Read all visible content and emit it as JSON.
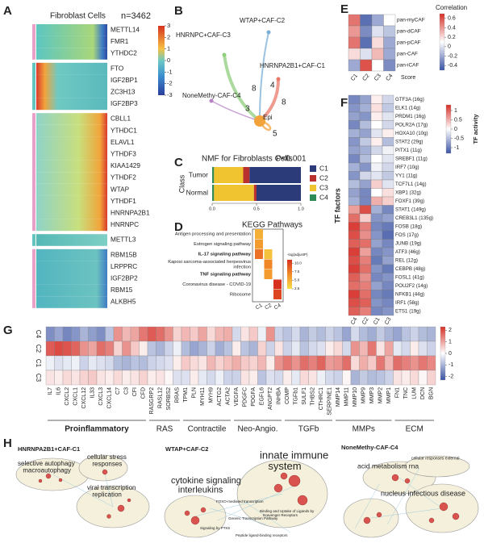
{
  "panel_labels": [
    "A",
    "B",
    "C",
    "D",
    "E",
    "F",
    "G",
    "H"
  ],
  "A": {
    "title": "Fibroblast Cells",
    "n_label": "n=3462",
    "gene_groups": [
      [
        "METTL14",
        "FMR1",
        "YTHDC2"
      ],
      [
        "FTO",
        "IGF2BP1",
        "ZC3H13",
        "IGF2BP3"
      ],
      [
        "CBLL1",
        "YTHDC1",
        "ELAVL1",
        "YTHDF3",
        "KIAA1429",
        "YTHDF2",
        "WTAP",
        "YTHDF1",
        "HNRNPA2B1",
        "HNRNPC"
      ],
      [
        "METTL3"
      ],
      [
        "RBM15B",
        "LRPPRC",
        "IGF2BP2",
        "RBM15",
        "ALKBH5"
      ]
    ],
    "colorbar_ticks": [
      3,
      2,
      1,
      0,
      -1,
      -2,
      -3
    ]
  },
  "B": {
    "nodes": [
      {
        "label": "HNRNPC+CAF-C3",
        "color": "#8fce7d"
      },
      {
        "label": "WTAP+CAF-C2",
        "color": "#7aaed6"
      },
      {
        "label": "HNRNPA2B1+CAF-C1",
        "color": "#e9796b"
      },
      {
        "label": "NoneMethy-CAF-C4",
        "color": "#b784c8"
      },
      {
        "label": "Epi",
        "color": "#f2a33a"
      }
    ],
    "edges": [
      {
        "source": "HNRNPC+CAF-C3",
        "target": "Epi",
        "weight": 8
      },
      {
        "source": "WTAP+CAF-C2",
        "target": "Epi",
        "weight": 4
      },
      {
        "source": "HNRNPA2B1+CAF-C1",
        "target": "Epi",
        "weight": 8
      },
      {
        "source": "NoneMethy-CAF-C4",
        "target": "Epi",
        "weight": 3
      },
      {
        "source": "Epi",
        "target": "Epi",
        "weight": 5
      }
    ]
  },
  "C": {
    "type": "bar",
    "title": "NMF for Fibroblasts Cells",
    "annotation": "P<0.001",
    "ylabel": "Class",
    "categories": [
      "Tumor",
      "Normal"
    ],
    "series": [
      {
        "name": "C1",
        "color": "#2b3a78",
        "values": [
          0.58,
          0.5
        ]
      },
      {
        "name": "C2",
        "color": "#b8312f",
        "values": [
          0.07,
          0.03
        ]
      },
      {
        "name": "C3",
        "color": "#f0c330",
        "values": [
          0.33,
          0.45
        ]
      },
      {
        "name": "C4",
        "color": "#2e8b57",
        "values": [
          0.02,
          0.02
        ]
      }
    ],
    "xlim": [
      0,
      1
    ],
    "xticks": [
      {
        "value": 0,
        "label": "0.0"
      },
      {
        "value": 0.5,
        "label": "0.5"
      },
      {
        "value": 1,
        "label": "1.0"
      }
    ]
  },
  "D": {
    "title": "KEGG Pathways",
    "legend_title": "-log(adjustP)",
    "pathways": [
      {
        "lines": [
          "Antigen processing and presentation"
        ],
        "bold": false
      },
      {
        "lines": [
          "Estrogen signaling pathway"
        ],
        "bold": false
      },
      {
        "lines": [
          "IL-17 signaling pathway"
        ],
        "bold": true
      },
      {
        "lines": [
          "Kaposi sarcoma-associated herpesvirus",
          "infection"
        ],
        "bold": false
      },
      {
        "lines": [
          "TNF signaling pathway"
        ],
        "bold": true
      },
      {
        "lines": [
          "Coronavirus disease - COVID-19"
        ],
        "bold": false
      },
      {
        "lines": [
          "Ribosome"
        ],
        "bold": false
      }
    ],
    "columns": [
      "C1",
      "C2",
      "C4"
    ],
    "values": [
      [
        5,
        null,
        null
      ],
      [
        6,
        null,
        null
      ],
      [
        8,
        4,
        null
      ],
      [
        null,
        7,
        null
      ],
      [
        null,
        6,
        null
      ],
      [
        null,
        null,
        11
      ],
      [
        null,
        null,
        10
      ]
    ],
    "lim": [
      2.5,
      11
    ],
    "ticks": [
      {
        "value": 10,
        "label": "10.0"
      },
      7.5,
      {
        "value": 5,
        "label": "5.0"
      },
      2.5
    ]
  },
  "E": {
    "title": "Correlation",
    "xlabel": "Score",
    "rows": [
      "pan-myCAF",
      "pan-dCAF",
      "pan-pCAF",
      "pan-CAF",
      "pan-iCAF"
    ],
    "columns": [
      "C1",
      "C2",
      "C3",
      "C4"
    ],
    "values": [
      [
        0.5,
        -0.4,
        -0.2,
        0.1
      ],
      [
        0.4,
        -0.3,
        0.0,
        -0.1
      ],
      [
        0.5,
        -0.4,
        0.2,
        -0.2
      ],
      [
        0.2,
        0.0,
        0.3,
        -0.2
      ],
      [
        -0.2,
        0.6,
        0.1,
        -0.3
      ]
    ],
    "lim": [
      -0.5,
      0.7
    ],
    "ticks": [
      0.6,
      0.4,
      0.2,
      0,
      -0.2,
      -0.4
    ]
  },
  "F": {
    "title": "TF activity",
    "ylabel": "TF factors",
    "rows": [
      "GTF3A (16g)",
      "ELK1 (14g)",
      "PRDM1 (16g)",
      "POLR2A (17g)",
      "HOXA10 (10g)",
      "STAT2 (29g)",
      "PITX1 (11g)",
      "SREBF1 (11g)",
      "IRF7 (10g)",
      "YY1 (11g)",
      "TCF7L1 (14g)",
      "XBP1 (32g)",
      "FOXF1 (39g)",
      "STAT1 (149g)",
      "CREB3L1 (135g)",
      "FOSB (18g)",
      "FOS (17g)",
      "JUNB (19g)",
      "ATF3 (46g)",
      "REL (12g)",
      "CEBPB (48g)",
      "FOSL1 (41g)",
      "POU2F2 (14g)",
      "NFKB1 (44g)",
      "IRF1 (58g)",
      "ETS1 (19g)"
    ],
    "columns": [
      "C4",
      "C2",
      "C1",
      "C3"
    ],
    "values": [
      [
        -0.9,
        -0.7,
        0.1,
        -0.3
      ],
      [
        -0.8,
        -0.6,
        0.2,
        -0.4
      ],
      [
        -0.7,
        -0.8,
        0.1,
        -0.2
      ],
      [
        -0.9,
        -0.5,
        0.0,
        -0.3
      ],
      [
        -0.6,
        -0.7,
        -0.2,
        0.1
      ],
      [
        -0.8,
        -0.4,
        0.1,
        -0.5
      ],
      [
        -0.7,
        -0.6,
        -0.3,
        -0.1
      ],
      [
        -0.9,
        -0.5,
        0.0,
        -0.2
      ],
      [
        -0.6,
        -0.8,
        -0.1,
        -0.3
      ],
      [
        -0.8,
        -0.3,
        -0.2,
        -0.4
      ],
      [
        -0.5,
        -0.7,
        0.3,
        -0.2
      ],
      [
        -0.7,
        -0.9,
        0.0,
        0.2
      ],
      [
        -0.6,
        -0.9,
        0.5,
        0.3
      ],
      [
        0.6,
        1.1,
        -0.6,
        -0.9
      ],
      [
        0.9,
        0.3,
        -0.8,
        -0.7
      ],
      [
        1.2,
        0.8,
        -0.9,
        -1.0
      ],
      [
        1.1,
        0.7,
        -0.8,
        -1.1
      ],
      [
        1.0,
        0.9,
        -0.7,
        -0.9
      ],
      [
        1.2,
        0.6,
        -0.9,
        -0.8
      ],
      [
        1.1,
        0.8,
        -1.0,
        -0.7
      ],
      [
        1.2,
        0.9,
        -0.8,
        -1.0
      ],
      [
        1.0,
        0.7,
        -0.9,
        -0.8
      ],
      [
        0.9,
        0.8,
        -0.7,
        -0.9
      ],
      [
        1.2,
        0.9,
        -0.9,
        -1.0
      ],
      [
        1.1,
        1.0,
        -0.8,
        -0.9
      ],
      [
        1.0,
        0.8,
        -0.9,
        -0.8
      ]
    ],
    "lim": [
      -1.3,
      1.3
    ],
    "ticks": [
      1,
      0.5,
      0,
      -0.5,
      -1
    ]
  },
  "G": {
    "rows": [
      "C4",
      "C2",
      "C1",
      "C3"
    ],
    "groups": [
      {
        "name": "Proinflammatory",
        "genes": [
          "IL7",
          "IL6",
          "CXCL2",
          "CXCL1",
          "CXCL12",
          "IL33",
          "CXCL3",
          "CXCL14",
          "C7",
          "C3",
          "CFI",
          "CFD"
        ]
      },
      {
        "name": "RAS",
        "genes": [
          "RASGRP2",
          "RASL12",
          "SORBS2",
          "RRAS"
        ]
      },
      {
        "name": "Contractile",
        "genes": [
          "TPM1",
          "PLN",
          "MYH11",
          "MYH9",
          "ACTG2",
          "ACTA2"
        ]
      },
      {
        "name": "Neo-Angio.",
        "genes": [
          "VEGFA",
          "PDGFC",
          "PDGFA",
          "EGFL6",
          "ANGPT2",
          "INHBA"
        ]
      },
      {
        "name": "TGFb",
        "genes": [
          "COMP",
          "TGFb1",
          "SULF1",
          "THBS2",
          "CTHRC1",
          "SERPINE1"
        ]
      },
      {
        "name": "MMPs",
        "genes": [
          "MMP14",
          "MMP11",
          "MMP10",
          "MMP9",
          "MMP3",
          "MMP2",
          "MMP1"
        ]
      },
      {
        "name": "ECM",
        "genes": [
          "FN1",
          "TNC",
          "LUM",
          "DCN",
          "BGN"
        ]
      }
    ],
    "values": [
      [
        -1.5,
        -1.2,
        -1.6,
        -1.4,
        -1.0,
        -1.3,
        -1.5,
        -0.8,
        1.2,
        0.8,
        1.0,
        1.5,
        1.8,
        1.6,
        1.2,
        0.5,
        0.8,
        0.6,
        1.0,
        0.4,
        0.8,
        0.9,
        -0.5,
        0.3,
        0.6,
        -0.2,
        1.2,
        -0.6,
        -0.8,
        -0.5,
        -1.0,
        -0.7,
        -0.9,
        -0.6,
        -0.8,
        -1.2,
        -0.5,
        -0.9,
        -1.1,
        -0.7,
        -1.0,
        -1.2,
        -0.8,
        -0.6,
        -0.9,
        -1.0
      ],
      [
        1.8,
        2.0,
        1.9,
        1.7,
        1.2,
        1.0,
        1.6,
        1.4,
        0.5,
        1.2,
        0.6,
        0.2,
        -0.8,
        -1.0,
        -0.6,
        -0.2,
        -0.9,
        -1.2,
        -1.0,
        -0.6,
        -1.1,
        -0.8,
        0.2,
        -0.8,
        -1.0,
        0.5,
        -0.6,
        0.3,
        -0.6,
        -0.3,
        -0.8,
        -0.5,
        -0.4,
        0.2,
        0.4,
        -0.5,
        1.2,
        0.8,
        1.5,
        0.3,
        1.0,
        -0.3,
        -0.5,
        0.2,
        -0.4,
        -0.6
      ],
      [
        -0.2,
        -0.4,
        -0.3,
        -0.2,
        -0.6,
        -0.3,
        -0.4,
        -0.5,
        -0.9,
        -1.0,
        -0.8,
        -0.9,
        -0.6,
        -0.5,
        -0.4,
        0.2,
        0.6,
        0.4,
        0.3,
        0.8,
        0.5,
        0.7,
        0.9,
        0.6,
        0.5,
        0.8,
        0.2,
        1.2,
        1.5,
        1.2,
        1.6,
        1.4,
        1.7,
        1.1,
        1.2,
        1.6,
        0.4,
        0.9,
        0.6,
        1.5,
        0.8,
        1.6,
        1.4,
        1.2,
        1.5,
        1.3
      ],
      [
        0.3,
        0.2,
        0.4,
        0.3,
        0.5,
        0.6,
        0.3,
        0.2,
        0.4,
        0.2,
        0.3,
        0.5,
        0.2,
        0.3,
        0.1,
        -0.4,
        -0.4,
        0.2,
        -0.3,
        -0.5,
        -0.2,
        -0.6,
        -0.6,
        0.3,
        0.2,
        -0.8,
        -0.4,
        -0.5,
        0.2,
        -0.3,
        0.4,
        0.3,
        -0.2,
        -0.5,
        -0.6,
        0.1,
        -1.0,
        -0.7,
        -0.9,
        -0.8,
        -0.6,
        0.3,
        0.2,
        0.4,
        0.1,
        0.5
      ]
    ],
    "lim": [
      -2.3,
      2.3
    ],
    "ticks": [
      2,
      1,
      0,
      -1,
      -2
    ]
  },
  "H": {
    "networks": [
      {
        "title": "HNRNPA2B1+CAF-C1",
        "terms": [
          {
            "lines": [
              "selective autophagy",
              "macroautophagy"
            ]
          },
          {
            "lines": [
              "cellular stress",
              "responses"
            ]
          },
          {
            "lines": [
              "viral transcription",
              "replication"
            ]
          }
        ]
      },
      {
        "title": "WTAP+CAF-C2",
        "terms": [
          {
            "lines": [
              "innate immune",
              "system"
            ]
          },
          {
            "lines": [
              "cytokine signaling",
              "interleukins"
            ]
          },
          {
            "lines": [
              "FOXO-mediated transcription"
            ]
          },
          {
            "lines": [
              "Generic Transcription Pathway"
            ]
          },
          {
            "lines": [
              "Signaling by PTK6"
            ]
          },
          {
            "lines": [
              "Binding and Uptake of Ligands by",
              "Scavenger Receptors"
            ]
          },
          {
            "lines": [
              "Peptide ligand-binding receptors"
            ]
          }
        ]
      },
      {
        "title": "NoneMethy-CAF-C4",
        "terms": [
          {
            "lines": [
              "acid metabolism rna"
            ]
          },
          {
            "lines": [
              "cellular responses external"
            ]
          },
          {
            "lines": [
              "nucleus infectious disease"
            ]
          }
        ]
      }
    ]
  }
}
